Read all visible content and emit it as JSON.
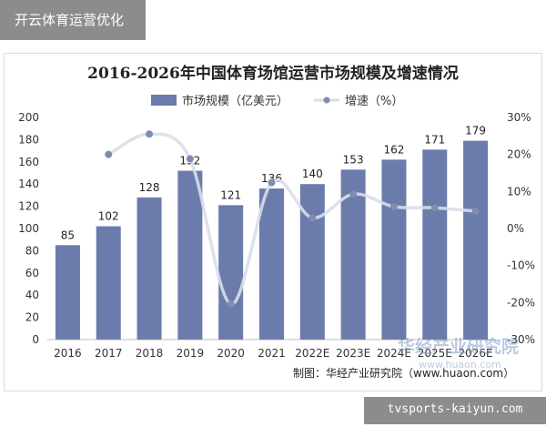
{
  "top_banner": {
    "text": "开云体育运营优化"
  },
  "bottom_banner": {
    "text": "tvsports-kaiyun.com"
  },
  "watermark": {
    "text": "华经产业研究院",
    "sub": "www.huaon.com"
  },
  "colors": {
    "bar": "#6b7bab",
    "line": "#d9dee8",
    "marker": "#808daf",
    "axis": "#bfbfbf"
  },
  "chart_data": {
    "type": "bar",
    "title": "2016-2026年中国体育场馆运营市场规模及增速情况",
    "legend": {
      "position": "top",
      "bar_label": "市场规模（亿美元）",
      "line_label": "增速（%）"
    },
    "categories": [
      "2016",
      "2017",
      "2018",
      "2019",
      "2020",
      "2021",
      "2022E",
      "2023E",
      "2024E",
      "2025E",
      "2026E"
    ],
    "series": [
      {
        "name": "市场规模（亿美元）",
        "type": "bar",
        "axis": "left",
        "values": [
          85,
          102,
          128,
          152,
          121,
          136,
          140,
          153,
          162,
          171,
          179
        ]
      },
      {
        "name": "增速（%）",
        "type": "line",
        "axis": "right",
        "values": [
          null,
          20.0,
          25.5,
          18.8,
          -20.4,
          12.4,
          2.9,
          9.3,
          5.9,
          5.6,
          4.7
        ]
      }
    ],
    "left_axis": {
      "min": 0,
      "max": 200,
      "step": 20,
      "ticks": [
        "0",
        "20",
        "40",
        "60",
        "80",
        "100",
        "120",
        "140",
        "160",
        "180",
        "200"
      ]
    },
    "right_axis": {
      "min": -30,
      "max": 30,
      "step": 10,
      "ticks": [
        "-30%",
        "-20%",
        "-10%",
        "0%",
        "10%",
        "20%",
        "30%"
      ]
    },
    "source": "制图：华经产业研究院（www.huaon.com）"
  }
}
